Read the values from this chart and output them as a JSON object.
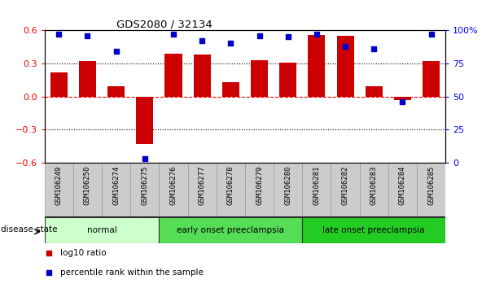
{
  "title": "GDS2080 / 32134",
  "samples": [
    "GSM106249",
    "GSM106250",
    "GSM106274",
    "GSM106275",
    "GSM106276",
    "GSM106277",
    "GSM106278",
    "GSM106279",
    "GSM106280",
    "GSM106281",
    "GSM106282",
    "GSM106283",
    "GSM106284",
    "GSM106285"
  ],
  "log10_ratio": [
    0.22,
    0.32,
    0.09,
    -0.43,
    0.39,
    0.38,
    0.13,
    0.33,
    0.31,
    0.56,
    0.55,
    0.09,
    -0.03,
    0.32
  ],
  "percentile_rank": [
    97,
    96,
    84,
    3,
    97,
    92,
    90,
    96,
    95,
    97,
    88,
    86,
    46,
    97
  ],
  "bar_color": "#cc0000",
  "dot_color": "#0000cc",
  "groups": [
    {
      "label": "normal",
      "start": 0,
      "end": 3,
      "color": "#ccffcc"
    },
    {
      "label": "early onset preeclampsia",
      "start": 4,
      "end": 8,
      "color": "#55dd55"
    },
    {
      "label": "late onset preeclampsia",
      "start": 9,
      "end": 13,
      "color": "#22cc22"
    }
  ],
  "ylim_left": [
    -0.6,
    0.6
  ],
  "ylim_right": [
    0,
    100
  ],
  "yticks_left": [
    -0.6,
    -0.3,
    0.0,
    0.3,
    0.6
  ],
  "yticks_right": [
    0,
    25,
    50,
    75,
    100
  ],
  "ytick_labels_right": [
    "0",
    "25",
    "50",
    "75",
    "100%"
  ],
  "hlines_dotted": [
    -0.3,
    0.3
  ],
  "hline_dashed": 0.0,
  "legend_items": [
    {
      "label": "log10 ratio",
      "color": "#cc0000"
    },
    {
      "label": "percentile rank within the sample",
      "color": "#0000cc"
    }
  ],
  "bar_width": 0.6,
  "disease_state_label": "disease state",
  "sample_label_fontsize": 6.5,
  "tick_gray_bg": "#cccccc",
  "tick_gray_edge": "#999999"
}
